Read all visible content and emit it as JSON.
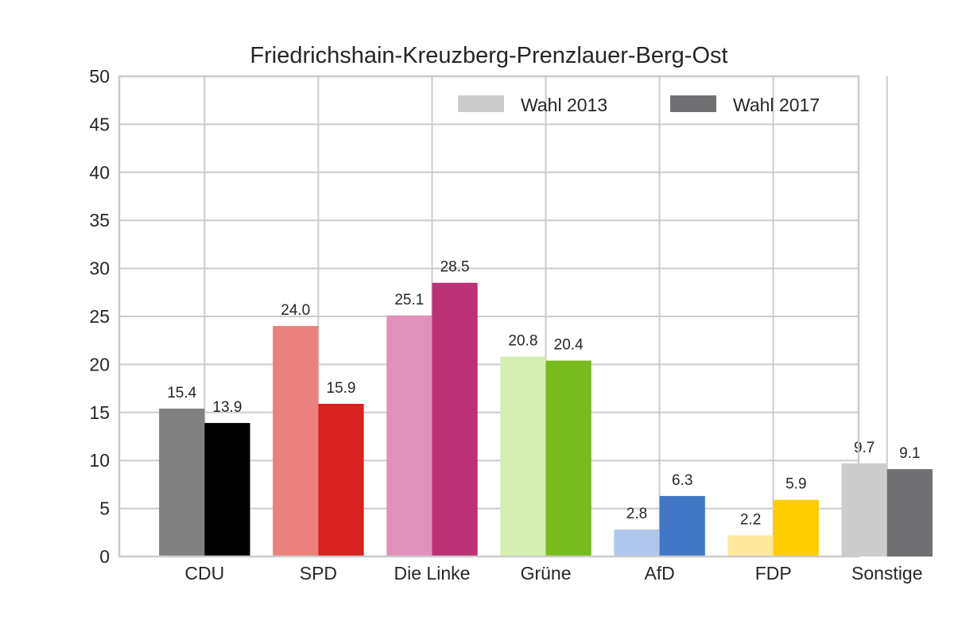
{
  "chart_data": {
    "type": "bar",
    "title": "Friedrichshain-Kreuzberg-Prenzlauer-Berg-Ost",
    "xlabel": "",
    "ylabel": "",
    "ylim": [
      0,
      50
    ],
    "yticks": [
      0,
      5,
      10,
      15,
      20,
      25,
      30,
      35,
      40,
      45,
      50
    ],
    "grid": true,
    "legend_position": "top-right",
    "categories": [
      "CDU",
      "SPD",
      "Die Linke",
      "Grüne",
      "AfD",
      "FDP",
      "Sonstige"
    ],
    "series": [
      {
        "name": "Wahl 2013",
        "values": [
          15.4,
          24.0,
          25.1,
          20.8,
          2.8,
          2.2,
          9.7
        ],
        "labels": [
          "15.4",
          "24.0",
          "25.1",
          "20.8",
          "2.8",
          "2.2",
          "9.7"
        ],
        "colors": [
          "#808080",
          "#ec807d",
          "#e091bb",
          "#d6eeb0",
          "#aec7ea",
          "#fde99b",
          "#cccccc"
        ],
        "legend_color": "#cccccc"
      },
      {
        "name": "Wahl 2017",
        "values": [
          13.9,
          15.9,
          28.5,
          20.4,
          6.3,
          5.9,
          9.1
        ],
        "labels": [
          "13.9",
          "15.9",
          "28.5",
          "20.4",
          "6.3",
          "5.9",
          "9.1"
        ],
        "colors": [
          "#000000",
          "#d92020",
          "#bc3075",
          "#77bb1c",
          "#4177c4",
          "#ffcc00",
          "#707072"
        ],
        "legend_color": "#707072"
      }
    ]
  }
}
